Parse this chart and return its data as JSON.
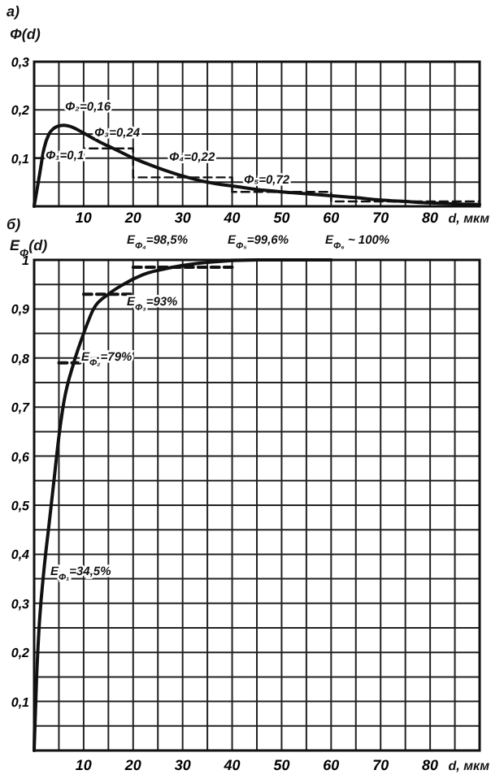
{
  "chart_data": [
    {
      "type": "line",
      "title": "а)",
      "ylabel": "Φ(d)",
      "xlabel": "d, мкм",
      "xlim": [
        0,
        90
      ],
      "ylim": [
        0,
        0.3
      ],
      "grid": true,
      "marker": "none",
      "xticks": [
        {
          "value": 0,
          "label": null
        },
        {
          "value": 5,
          "label": null
        },
        10,
        {
          "value": 15,
          "label": null
        },
        20,
        {
          "value": 25,
          "label": null
        },
        30,
        {
          "value": 35,
          "label": null
        },
        40,
        {
          "value": 45,
          "label": null
        },
        50,
        {
          "value": 55,
          "label": null
        },
        60,
        {
          "value": 65,
          "label": null
        },
        70,
        {
          "value": 75,
          "label": null
        },
        80,
        {
          "value": 85,
          "label": null
        },
        {
          "value": 90,
          "label": null
        }
      ],
      "yticks": [
        {
          "value": 0,
          "label": null
        },
        {
          "value": 0.05,
          "label": null
        },
        {
          "value": 0.1,
          "label": "0,1"
        },
        {
          "value": 0.15,
          "label": null
        },
        {
          "value": 0.2,
          "label": "0,2"
        },
        {
          "value": 0.25,
          "label": null
        },
        {
          "value": 0.3,
          "label": "0,3"
        }
      ],
      "series": [
        {
          "type": "line",
          "color": "#111111",
          "line_style": "solid",
          "x": [
            0,
            1,
            2,
            3,
            4,
            5,
            6,
            8,
            10,
            13,
            16,
            20,
            25,
            30,
            35,
            40,
            45,
            50,
            55,
            60,
            65,
            70,
            75,
            80,
            85,
            90
          ],
          "values": [
            0,
            0.06,
            0.12,
            0.15,
            0.162,
            0.167,
            0.168,
            0.163,
            0.152,
            0.135,
            0.12,
            0.1,
            0.08,
            0.063,
            0.05,
            0.042,
            0.035,
            0.03,
            0.026,
            0.022,
            0.018,
            0.013,
            0.01,
            0.007,
            0.005,
            0.004
          ]
        },
        {
          "type": "step",
          "color": "#111111",
          "line_style": "dashed",
          "x": [
            0,
            10,
            20,
            40,
            60,
            90
          ],
          "values": [
            0.1,
            0.12,
            0.06,
            0.03,
            0.01,
            0.01
          ]
        }
      ],
      "annotations": [
        "Φ₁=0,1",
        "Φ₂=0,16",
        "Φ₃=0,24",
        "Φ₄=0,22",
        "Φ₅=0,72"
      ]
    },
    {
      "type": "line",
      "title": "б)",
      "ylabel": "E$_{Φ}$(d)",
      "xlabel": "d, мкм",
      "xlim": [
        0,
        90
      ],
      "ylim": [
        0,
        1
      ],
      "grid": true,
      "marker": "none",
      "xticks": [
        {
          "value": 0,
          "label": null
        },
        {
          "value": 5,
          "label": null
        },
        10,
        {
          "value": 15,
          "label": null
        },
        20,
        {
          "value": 25,
          "label": null
        },
        30,
        {
          "value": 35,
          "label": null
        },
        40,
        {
          "value": 45,
          "label": null
        },
        50,
        {
          "value": 55,
          "label": null
        },
        60,
        {
          "value": 65,
          "label": null
        },
        70,
        {
          "value": 75,
          "label": null
        },
        80,
        {
          "value": 85,
          "label": null
        },
        {
          "value": 90,
          "label": null
        }
      ],
      "yticks": [
        {
          "value": 0,
          "label": null
        },
        {
          "value": 0.05,
          "label": null
        },
        {
          "value": 0.1,
          "label": "0,1"
        },
        {
          "value": 0.15,
          "label": null
        },
        {
          "value": 0.2,
          "label": "0,2"
        },
        {
          "value": 0.25,
          "label": null
        },
        {
          "value": 0.3,
          "label": "0,3"
        },
        {
          "value": 0.35,
          "label": null
        },
        {
          "value": 0.4,
          "label": "0,4"
        },
        {
          "value": 0.45,
          "label": null
        },
        {
          "value": 0.5,
          "label": "0,5"
        },
        {
          "value": 0.55,
          "label": null
        },
        {
          "value": 0.6,
          "label": "0,6"
        },
        {
          "value": 0.65,
          "label": null
        },
        {
          "value": 0.7,
          "label": "0,7"
        },
        {
          "value": 0.75,
          "label": null
        },
        {
          "value": 0.8,
          "label": "0,8"
        },
        {
          "value": 0.85,
          "label": null
        },
        {
          "value": 0.9,
          "label": "0,9"
        },
        {
          "value": 0.95,
          "label": null
        },
        {
          "value": 1,
          "label": "1"
        }
      ],
      "series": [
        {
          "type": "line",
          "color": "#111111",
          "line_style": "solid",
          "x": [
            0,
            0.5,
            1,
            2,
            3,
            4,
            5,
            6,
            8,
            10,
            12,
            15,
            18,
            22,
            28,
            35,
            45,
            60
          ],
          "values": [
            0,
            0.15,
            0.25,
            0.37,
            0.46,
            0.55,
            0.64,
            0.71,
            0.79,
            0.85,
            0.9,
            0.93,
            0.95,
            0.97,
            0.985,
            0.995,
            1,
            1
          ]
        },
        {
          "type": "line",
          "color": "#111111",
          "line_style": "dashed",
          "x": [
            5,
            10
          ],
          "values": [
            0.79,
            0.79
          ]
        },
        {
          "type": "line",
          "color": "#111111",
          "line_style": "dashed",
          "x": [
            10,
            20
          ],
          "values": [
            0.93,
            0.93
          ]
        },
        {
          "type": "line",
          "color": "#111111",
          "line_style": "dashed",
          "x": [
            20,
            40
          ],
          "values": [
            0.985,
            0.985
          ]
        }
      ],
      "annotations": [
        "E$_{Φ₁}$=34,5%",
        "E$_{Φ₂}$=79%",
        "E$_{Φ₃}$=93%",
        "E$_{Φ₄}$=98,5%",
        "E$_{Φ₅}$=99,6%",
        "E$_{Φ₆}$ ~ 100%"
      ]
    }
  ]
}
